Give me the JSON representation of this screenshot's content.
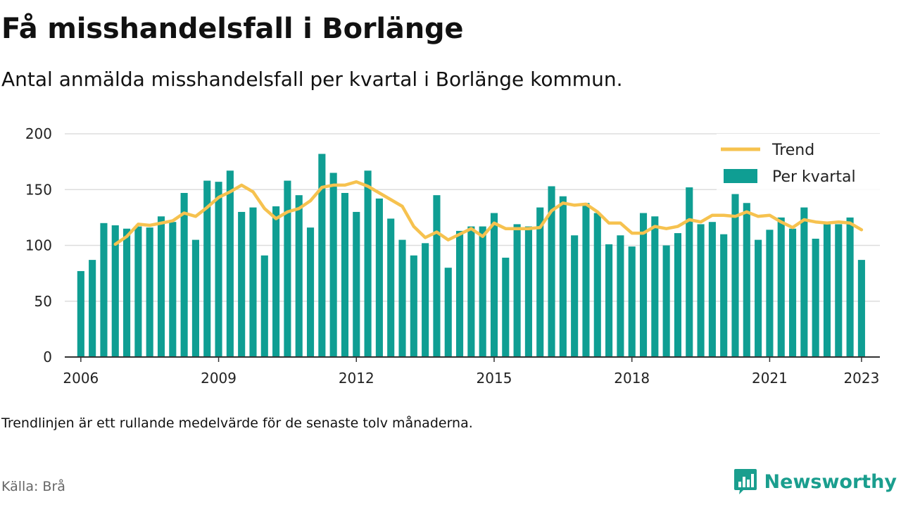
{
  "header": {
    "title": "Få misshandelsfall i Borlänge",
    "subtitle": "Antal anmälda misshandelsfall per kvartal i Borlänge kommun."
  },
  "footer": {
    "note": "Trendlinjen är ett rullande medelvärde för de senaste tolv månaderna.",
    "source": "Källa: Brå",
    "brand": "Newsworthy"
  },
  "colors": {
    "bar": "#0f9e93",
    "trend": "#f6c24f",
    "grid": "#dddddd",
    "axis": "#333333",
    "brand": "#1a9e8e"
  },
  "chart_data": {
    "type": "bar",
    "x_start": 2006.0,
    "x_step": 0.25,
    "xlim": [
      2005.65,
      2023.4
    ],
    "ylim": [
      0,
      200
    ],
    "yticks": [
      0,
      50,
      100,
      150,
      200
    ],
    "xticks": [
      2006,
      2009,
      2012,
      2015,
      2018,
      2021,
      2023
    ],
    "grid": true,
    "legend_position": "top-right",
    "series": [
      {
        "name": "Per kvartal",
        "type": "bar",
        "values": [
          77,
          87,
          120,
          118,
          115,
          117,
          116,
          126,
          121,
          147,
          105,
          158,
          157,
          167,
          130,
          134,
          91,
          135,
          158,
          145,
          116,
          182,
          165,
          147,
          130,
          167,
          142,
          124,
          105,
          91,
          102,
          145,
          80,
          113,
          117,
          117,
          129,
          89,
          119,
          117,
          134,
          153,
          144,
          109,
          138,
          129,
          101,
          109,
          99,
          129,
          126,
          100,
          111,
          152,
          119,
          121,
          110,
          146,
          138,
          105,
          114,
          125,
          115,
          134,
          106,
          119,
          119,
          125,
          87
        ]
      },
      {
        "name": "Trend",
        "type": "line",
        "values": [
          null,
          null,
          null,
          101,
          108,
          119,
          118,
          120,
          122,
          129,
          126,
          134,
          143,
          148,
          154,
          148,
          133,
          124,
          130,
          133,
          140,
          152,
          154,
          154,
          157,
          153,
          147,
          141,
          135,
          117,
          107,
          112,
          105,
          110,
          115,
          108,
          120,
          115,
          115,
          115,
          116,
          131,
          138,
          136,
          137,
          130,
          120,
          120,
          111,
          111,
          117,
          115,
          117,
          123,
          121,
          127,
          127,
          126,
          130,
          126,
          127,
          121,
          116,
          123,
          121,
          120,
          121,
          120,
          114
        ]
      }
    ]
  }
}
